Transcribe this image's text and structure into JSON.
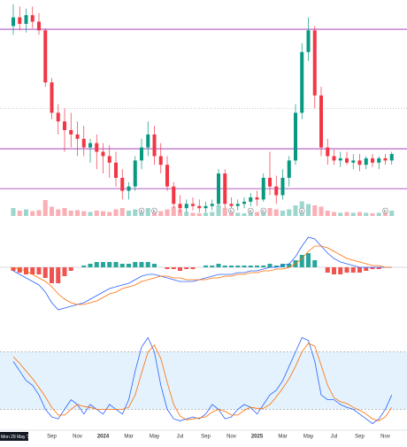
{
  "chart_data": [
    {
      "type": "candlestick",
      "categories": [
        "Mon 29 May '23",
        null,
        null,
        null,
        null,
        null,
        "Sep",
        null,
        null,
        null,
        "Nov",
        null,
        null,
        null,
        "2024",
        null,
        null,
        null,
        "Mar",
        null,
        null,
        null,
        "May",
        null,
        null,
        null,
        "Jul",
        null,
        null,
        null,
        "Sep",
        null,
        null,
        null,
        "Nov",
        null,
        null,
        null,
        "2025",
        null,
        null,
        null,
        "Mar",
        null,
        null,
        null,
        "May",
        null,
        null,
        null,
        "Jul",
        null,
        null,
        null,
        "Sep",
        null,
        null,
        null,
        "Nov",
        null
      ],
      "open": [
        88,
        92,
        89,
        93,
        90,
        86,
        62,
        48,
        44,
        40,
        38,
        36,
        32,
        34,
        30,
        28,
        25,
        18,
        12,
        14,
        26,
        32,
        38,
        28,
        24,
        14,
        6,
        4,
        6,
        5,
        4,
        5,
        6,
        20,
        6,
        5,
        6,
        7,
        9,
        8,
        18,
        14,
        10,
        18,
        26,
        48,
        76,
        86,
        56,
        32,
        28,
        26,
        27,
        25,
        26,
        24,
        27,
        25,
        27,
        26
      ],
      "high": [
        98,
        97,
        96,
        97,
        94,
        87,
        64,
        52,
        50,
        48,
        44,
        42,
        36,
        38,
        34,
        33,
        30,
        22,
        16,
        28,
        36,
        44,
        42,
        34,
        28,
        16,
        10,
        8,
        9,
        8,
        7,
        8,
        22,
        22,
        9,
        8,
        9,
        11,
        12,
        20,
        30,
        19,
        22,
        28,
        52,
        80,
        92,
        88,
        60,
        36,
        31,
        30,
        30,
        29,
        29,
        28,
        29,
        28,
        29,
        30
      ],
      "low": [
        84,
        86,
        85,
        87,
        84,
        60,
        45,
        38,
        30,
        32,
        28,
        28,
        25,
        22,
        20,
        18,
        14,
        8,
        8,
        12,
        22,
        28,
        24,
        20,
        12,
        4,
        2,
        2,
        3,
        2,
        2,
        3,
        5,
        4,
        3,
        3,
        4,
        5,
        5,
        7,
        10,
        6,
        8,
        14,
        24,
        45,
        72,
        50,
        28,
        24,
        24,
        23,
        24,
        22,
        21,
        22,
        23,
        22,
        24,
        24
      ],
      "close": [
        92,
        89,
        93,
        90,
        86,
        62,
        48,
        44,
        40,
        38,
        36,
        32,
        34,
        30,
        28,
        25,
        18,
        12,
        14,
        26,
        32,
        38,
        28,
        24,
        14,
        6,
        4,
        6,
        5,
        4,
        5,
        6,
        20,
        6,
        5,
        6,
        7,
        9,
        8,
        18,
        14,
        10,
        18,
        26,
        48,
        76,
        86,
        56,
        32,
        28,
        26,
        27,
        25,
        26,
        24,
        27,
        25,
        27,
        26,
        29
      ],
      "volume": [
        30,
        20,
        25,
        18,
        22,
        60,
        35,
        25,
        30,
        20,
        22,
        18,
        15,
        20,
        18,
        15,
        25,
        30,
        20,
        25,
        22,
        30,
        20,
        18,
        25,
        35,
        25,
        15,
        12,
        10,
        12,
        15,
        40,
        30,
        15,
        12,
        10,
        12,
        15,
        20,
        30,
        25,
        20,
        25,
        40,
        55,
        45,
        40,
        35,
        20,
        15,
        12,
        15,
        12,
        15,
        12,
        10,
        12,
        10,
        20
      ],
      "up_color": "#089981",
      "down_color": "#f23645",
      "ylim": [
        0,
        100
      ],
      "levels": [
        86.5,
        31.4,
        13
      ],
      "level_color": "#9c27b0",
      "dotted_levels": [
        50
      ],
      "event_markers": [
        {
          "index": 20,
          "label": "E"
        },
        {
          "index": 22,
          "label": "E"
        },
        {
          "index": 34,
          "label": "E"
        },
        {
          "index": 37,
          "label": "E"
        },
        {
          "index": 39,
          "label": "E"
        },
        {
          "index": 45,
          "label": "E"
        },
        {
          "index": 58,
          "label": "E"
        }
      ]
    },
    {
      "type": "macd",
      "ylim": [
        -39,
        23.5
      ],
      "series": [
        {
          "color": "#2962ff",
          "values": [
            -2,
            -4,
            -6,
            -8,
            -10,
            -14,
            -20,
            -24,
            -23,
            -22,
            -21,
            -20,
            -18,
            -16,
            -14,
            -12,
            -11,
            -10,
            -9,
            -7,
            -5,
            -4,
            -4,
            -5,
            -6,
            -7,
            -8,
            -8,
            -8,
            -7,
            -6,
            -5,
            -4,
            -4,
            -4,
            -3,
            -3,
            -2,
            -2,
            -1,
            0,
            0,
            1,
            2,
            6,
            12,
            17,
            16,
            12,
            8,
            5,
            3,
            2,
            1,
            0,
            0,
            0,
            0,
            0,
            0
          ]
        },
        {
          "color": "#ff6d00",
          "values": [
            0,
            -1,
            -2,
            -4,
            -6,
            -8,
            -11,
            -15,
            -18,
            -20,
            -21,
            -21,
            -20,
            -19,
            -17,
            -15,
            -14,
            -12,
            -11,
            -10,
            -8,
            -7,
            -6,
            -5,
            -5,
            -6,
            -6,
            -7,
            -7,
            -7,
            -7,
            -6,
            -6,
            -5,
            -5,
            -4,
            -4,
            -3,
            -3,
            -2,
            -2,
            -1,
            -1,
            0,
            2,
            5,
            9,
            12,
            12,
            11,
            9,
            7,
            5,
            4,
            3,
            2,
            1,
            1,
            0,
            0
          ]
        }
      ],
      "histogram": [
        -2,
        -3,
        -4,
        -4,
        -4,
        -6,
        -9,
        -9,
        -5,
        -2,
        0,
        1,
        2,
        3,
        3,
        3,
        3,
        2,
        2,
        3,
        3,
        3,
        2,
        0,
        -1,
        -1,
        -2,
        -1,
        -1,
        0,
        1,
        1,
        2,
        1,
        1,
        1,
        1,
        1,
        1,
        1,
        2,
        1,
        2,
        2,
        4,
        7,
        8,
        4,
        0,
        -3,
        -4,
        -4,
        -3,
        -3,
        -3,
        -2,
        -1,
        -1,
        0,
        0
      ],
      "up_color": "#26a69a",
      "down_color": "#ef5350"
    },
    {
      "type": "stochastic",
      "ylim": [
        0,
        100
      ],
      "band": [
        20,
        80
      ],
      "band_color": "#e3f2fd",
      "series": [
        {
          "color": "#2962ff",
          "values": [
            70,
            60,
            50,
            45,
            35,
            20,
            12,
            10,
            20,
            30,
            25,
            15,
            25,
            20,
            15,
            25,
            20,
            15,
            30,
            60,
            85,
            95,
            80,
            45,
            20,
            10,
            8,
            10,
            12,
            10,
            15,
            25,
            20,
            10,
            12,
            20,
            25,
            22,
            15,
            25,
            35,
            40,
            50,
            65,
            80,
            95,
            92,
            70,
            35,
            30,
            30,
            25,
            22,
            20,
            15,
            10,
            5,
            10,
            20,
            35
          ]
        },
        {
          "color": "#ff6d00",
          "values": [
            75,
            68,
            60,
            52,
            43,
            33,
            22,
            14,
            14,
            20,
            25,
            23,
            22,
            20,
            20,
            20,
            20,
            20,
            22,
            35,
            58,
            80,
            87,
            73,
            48,
            25,
            13,
            9,
            10,
            11,
            12,
            17,
            20,
            18,
            14,
            14,
            19,
            22,
            21,
            21,
            25,
            33,
            42,
            52,
            65,
            80,
            89,
            86,
            66,
            45,
            32,
            28,
            26,
            22,
            19,
            15,
            10,
            8,
            12,
            22
          ]
        }
      ]
    }
  ]
}
